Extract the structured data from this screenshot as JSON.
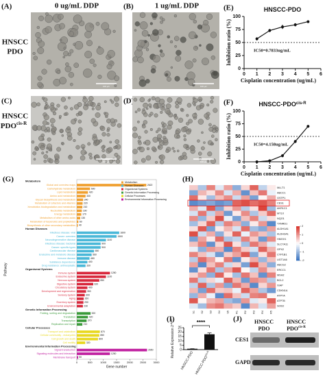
{
  "panel_labels": [
    "(A)",
    "(B)",
    "(C)",
    "(D)",
    "(E)",
    "(F)",
    "(G)",
    "(H)",
    "(I)",
    "(J)"
  ],
  "microscopy": {
    "col_headers": [
      "0 ug/mL DDP",
      "1 ug/mL DDP"
    ],
    "row1": [
      "HNSCC",
      "PDO"
    ],
    "row2": [
      "HNSCC",
      "PDO",
      "cis-R"
    ],
    "scale_bar": "100 μm"
  },
  "chart_data": [
    {
      "type": "line",
      "title": "HNSCC-PDO",
      "x": [
        1,
        2,
        3,
        4,
        5
      ],
      "values": [
        57,
        73,
        80,
        84,
        90
      ],
      "errors": [
        3,
        3,
        4,
        3,
        2
      ],
      "color": "#111111",
      "threshold": 50,
      "annotation": "IC50=0.7833ug/mL",
      "xlim": [
        0,
        6
      ],
      "xticks": [
        0,
        1,
        2,
        3,
        4,
        5,
        6
      ],
      "ylim": [
        0,
        100
      ],
      "yticks": [
        0,
        25,
        50,
        75,
        100
      ],
      "ylabel": "Inhibition ratio (%)",
      "xlabel": "Cisplatin concentration (ug/mL)"
    },
    {
      "type": "line",
      "title": "HNSCC-PDO",
      "title_sup": "cis-R",
      "x": [
        1,
        2,
        3,
        4,
        5
      ],
      "values": [
        0,
        2,
        12,
        40,
        70
      ],
      "errors": [
        2,
        2,
        3,
        3,
        2
      ],
      "color": "#111111",
      "threshold": 50,
      "annotation": "IC50=4.158ug/mL",
      "xlim": [
        0,
        6
      ],
      "xticks": [
        0,
        1,
        2,
        3,
        4,
        5,
        6
      ],
      "ylim": [
        0,
        100
      ],
      "yticks": [
        0,
        25,
        50,
        75,
        100
      ],
      "ylabel": "Inhibition ratio (%)",
      "xlabel": "Cisplatin concentration (ug/mL)"
    },
    {
      "type": "hbar",
      "xlabel": "Gene number",
      "ylabel": "Pathway",
      "xlim": [
        0,
        3000
      ],
      "xticks": [
        0,
        500,
        1000,
        1500,
        2000,
        2500,
        3000
      ],
      "groups": [
        {
          "name": "Metabolism",
          "color": "#f0a030",
          "categories": [
            "Global and overview maps",
            "Carbohydrate metabolism",
            "Lipid metabolism",
            "Amino acid metabolism",
            "Glycan biosynthesis and metabolism",
            "Metabolism of cofactors and vitamins",
            "Xenobiotics biodegradation and metabolism",
            "Nucleotide metabolism",
            "Energy metabolism",
            "Metabolism of other amino acids",
            "Metabolism of terpenoids and polyketides",
            "Biosynthesis of other secondary metabolites"
          ],
          "values": [
            2622,
            500,
            420,
            330,
            240,
            220,
            210,
            190,
            170,
            130,
            60,
            40
          ]
        },
        {
          "name": "Human Diseases",
          "color": "#4ab8d8",
          "categories": [
            "Infectious disease: viral",
            "Cancer: overview",
            "Neurodegenerative disease",
            "Infectious disease: bacterial",
            "Cancer: specific types",
            "Cardiovascular disease",
            "Endocrine and metabolic disease",
            "Immune disease",
            "Substance dependence",
            "Drug resistance: antineoplastic"
          ],
          "values": [
            1600,
            1500,
            1100,
            900,
            900,
            650,
            560,
            480,
            400,
            330
          ]
        },
        {
          "name": "Organismal Systems",
          "color": "#d8283c",
          "categories": [
            "Immune system",
            "Endocrine system",
            "Nervous system",
            "Digestive system",
            "Circulatory system",
            "Development and regeneration",
            "Sensory system",
            "Aging",
            "Excretory system",
            "Environmental adaptation"
          ],
          "values": [
            1250,
            1100,
            850,
            620,
            400,
            350,
            300,
            260,
            250,
            230
          ]
        },
        {
          "name": "Genetic Information Processing",
          "color": "#3a9a3a",
          "categories": [
            "Folding, sorting and degradation",
            "Translation",
            "Transcription",
            "Replication and repair"
          ],
          "values": [
            520,
            420,
            370,
            210
          ]
        },
        {
          "name": "Cellular Processes",
          "color": "#e8d820",
          "categories": [
            "Transport and catabolism",
            "Cellular community - eukaryotes",
            "Cell growth and death",
            "Cell motility"
          ],
          "values": [
            870,
            850,
            800,
            320
          ]
        },
        {
          "name": "Environmental Information Processing",
          "color": "#c020a0",
          "categories": [
            "Signal transduction",
            "Signaling molecules and interaction",
            "Membrane transport"
          ],
          "values": [
            2650,
            1250,
            50
          ]
        }
      ]
    },
    {
      "type": "heatmap",
      "highlight_row": 3,
      "zlim": [
        -2,
        2
      ],
      "zticks": [
        2,
        1,
        0,
        -1,
        -2
      ],
      "columns": [
        "S1",
        "S2",
        "S3",
        "S4",
        "S5",
        "R1",
        "R2",
        "R3",
        "R4",
        "R5"
      ],
      "rows": [
        "MLLT1",
        "ABCC1",
        "GSTP1",
        "CES1",
        "AKR1C1",
        "MT1X",
        "NQO1",
        "TXNRD1",
        "ALDH1A1",
        "ALDH3A1",
        "HMOX1",
        "SLC7A11",
        "GPX2",
        "CYP1B1",
        "UGT1A6",
        "ABCG2",
        "ERCC1",
        "MSH2",
        "BCL2",
        "XIAP",
        "CDKN1A",
        "ATP7A",
        "ATP7B",
        "SOD2"
      ],
      "values": [
        [
          0.5,
          -0.8,
          1.2,
          -0.3,
          0.9,
          -1.1,
          0.4,
          1.5,
          -0.6,
          0.2
        ],
        [
          -1.2,
          0.7,
          0.3,
          1.1,
          -0.4,
          0.8,
          -1.5,
          0.6,
          1.3,
          -0.2
        ],
        [
          1.4,
          0.2,
          -0.9,
          0.6,
          1.1,
          -0.5,
          0.9,
          -1.3,
          0.1,
          0.8
        ],
        [
          -1.6,
          -1.4,
          -1.2,
          -1.5,
          -1.3,
          1.5,
          1.7,
          1.4,
          1.6,
          1.2
        ],
        [
          0.8,
          -0.3,
          1.6,
          -1.2,
          0.4,
          1.0,
          -0.7,
          0.3,
          1.8,
          -0.9
        ],
        [
          -0.4,
          1.3,
          -0.6,
          0.9,
          -1.4,
          0.2,
          1.1,
          -0.8,
          0.5,
          1.4
        ],
        [
          1.1,
          -1.0,
          0.5,
          1.7,
          -0.2,
          -1.3,
          0.6,
          1.2,
          -0.5,
          0.3
        ],
        [
          -0.9,
          0.4,
          1.5,
          -0.7,
          1.2,
          0.8,
          -1.1,
          0.2,
          1.0,
          -1.6
        ],
        [
          0.3,
          1.6,
          -1.3,
          0.2,
          0.7,
          -0.4,
          1.4,
          -0.9,
          -1.2,
          0.9
        ],
        [
          1.7,
          -0.5,
          0.8,
          -1.1,
          0.3,
          1.5,
          -0.2,
          1.0,
          0.6,
          -0.8
        ],
        [
          -1.3,
          0.9,
          0.2,
          1.4,
          -0.8,
          -0.6,
          1.2,
          0.5,
          -1.4,
          1.1
        ],
        [
          0.6,
          1.2,
          -1.5,
          0.4,
          1.6,
          0.3,
          -0.9,
          1.3,
          0.8,
          -0.3
        ],
        [
          -0.2,
          -1.1,
          1.0,
          0.8,
          -1.6,
          1.2,
          0.5,
          -0.4,
          1.5,
          0.7
        ],
        [
          1.2,
          0.6,
          -0.4,
          -1.4,
          0.5,
          0.9,
          1.6,
          -1.2,
          0.3,
          1.3
        ],
        [
          -0.7,
          1.4,
          0.9,
          0.1,
          1.3,
          -1.5,
          0.2,
          0.8,
          -1.0,
          0.6
        ],
        [
          0.9,
          -1.6,
          0.6,
          1.2,
          -0.5,
          0.4,
          -1.3,
          1.7,
          0.7,
          -1.1
        ],
        [
          -1.5,
          0.3,
          1.3,
          -0.8,
          0.9,
          1.6,
          0.1,
          -0.6,
          1.1,
          0.4
        ],
        [
          0.4,
          1.0,
          -1.1,
          1.5,
          0.2,
          -0.9,
          1.3,
          0.6,
          -1.5,
          1.2
        ],
        [
          1.3,
          -0.6,
          0.4,
          -0.2,
          1.5,
          0.7,
          -1.4,
          1.1,
          0.9,
          -0.7
        ],
        [
          -0.6,
          1.5,
          -0.8,
          1.0,
          -1.2,
          1.3,
          0.8,
          -1.6,
          0.4,
          1.0
        ],
        [
          0.7,
          -1.3,
          1.4,
          0.5,
          0.6,
          -0.2,
          1.5,
          0.9,
          -0.8,
          -1.4
        ],
        [
          -1.0,
          0.8,
          -0.2,
          -1.6,
          1.4,
          0.6,
          -0.5,
          1.2,
          1.3,
          0.1
        ],
        [
          1.6,
          0.1,
          0.7,
          0.9,
          -0.9,
          -1.2,
          1.0,
          -0.3,
          0.2,
          1.5
        ],
        [
          -0.3,
          -0.9,
          1.1,
          1.3,
          0.8,
          0.5,
          -1.6,
          0.7,
          -0.4,
          0.9
        ]
      ]
    },
    {
      "type": "bar",
      "categories": [
        "HNSCC-PDO",
        "HNSCC-PDO"
      ],
      "category_sups": [
        null,
        "cis-R"
      ],
      "values": [
        1,
        17.5
      ],
      "errors": [
        0.1,
        1.6
      ],
      "colors": [
        "#111111",
        "#111111"
      ],
      "significance": "****",
      "ylim": [
        0,
        25
      ],
      "yticks": [
        0,
        5,
        10,
        15,
        20,
        25
      ],
      "ylabel": "Relative Expression 2",
      "ylabel_sup": "-ΔΔct"
    }
  ],
  "blot": {
    "lane1": [
      "HNSCC",
      "PDO"
    ],
    "lane2": [
      "HNSCC",
      "PDO",
      "cis-R"
    ],
    "proteins": [
      "CES1",
      "GAPDH"
    ]
  }
}
